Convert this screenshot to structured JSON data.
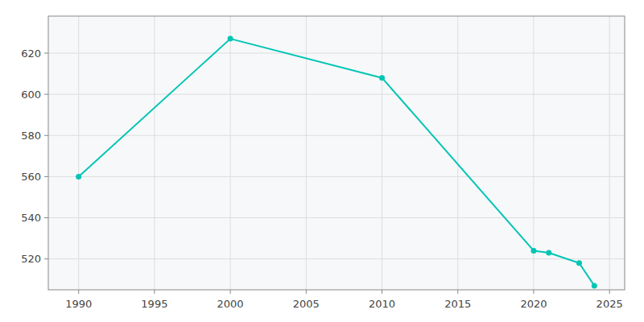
{
  "chart_data": {
    "type": "line",
    "x": [
      1990,
      2000,
      2010,
      2020,
      2021,
      2023,
      2024
    ],
    "values": [
      560,
      627,
      608,
      524,
      523,
      518,
      507
    ],
    "color": "#00C5B5",
    "marker": "circle",
    "xlim": [
      1988,
      2026
    ],
    "ylim": [
      505,
      638
    ],
    "xticks": [
      1990,
      1995,
      2000,
      2005,
      2010,
      2015,
      2020,
      2025
    ],
    "yticks": [
      520,
      540,
      560,
      580,
      600,
      620
    ],
    "grid": true
  }
}
